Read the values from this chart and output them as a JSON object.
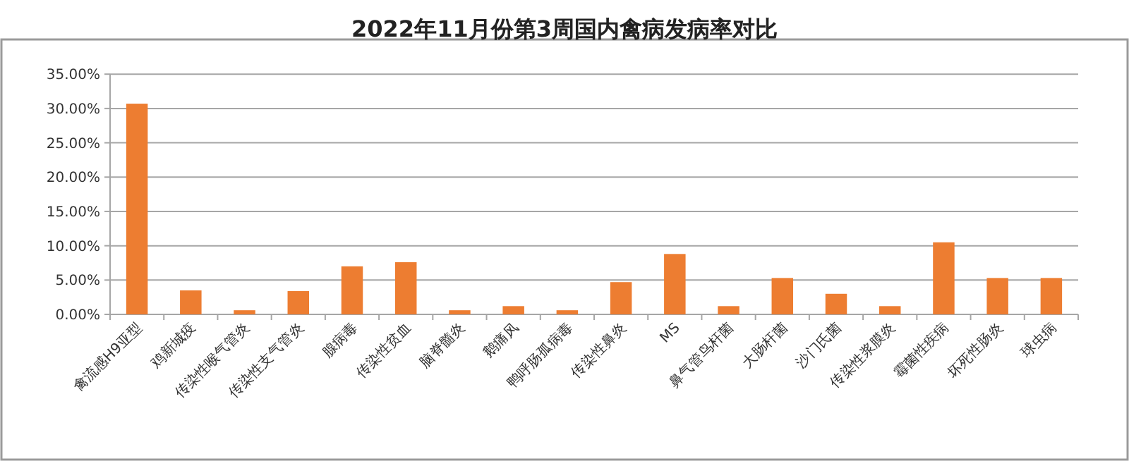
{
  "chart_data": {
    "type": "bar",
    "title": "2022年11月份第3周国内禽病发病率对比",
    "categories": [
      "禽流感H9亚型",
      "鸡新城疫",
      "传染性喉气管炎",
      "传染性支气管炎",
      "腺病毒",
      "传染性贫血",
      "脑脊髓炎",
      "鹅痛风",
      "鸭呼肠孤病毒",
      "传染性鼻炎",
      "MS",
      "鼻气管鸟杆菌",
      "大肠杆菌",
      "沙门氏菌",
      "传染性浆膜炎",
      "霉菌性疾病",
      "坏死性肠炎",
      "球虫病"
    ],
    "values": [
      30.7,
      3.5,
      0.6,
      3.4,
      7.0,
      7.6,
      0.6,
      1.2,
      0.6,
      4.7,
      8.8,
      1.2,
      5.3,
      3.0,
      1.2,
      10.5,
      5.3,
      5.3
    ],
    "color": "#ed7d31",
    "ylim": [
      0,
      35
    ],
    "yticks": [
      {
        "value": 0,
        "label": "0.00%"
      },
      {
        "value": 5,
        "label": "5.00%"
      },
      {
        "value": 10,
        "label": "10.00%"
      },
      {
        "value": 15,
        "label": "15.00%"
      },
      {
        "value": 20,
        "label": "20.00%"
      },
      {
        "value": 25,
        "label": "25.00%"
      },
      {
        "value": 30,
        "label": "30.00%"
      },
      {
        "value": 35,
        "label": "35.00%"
      }
    ],
    "grid": "y"
  }
}
